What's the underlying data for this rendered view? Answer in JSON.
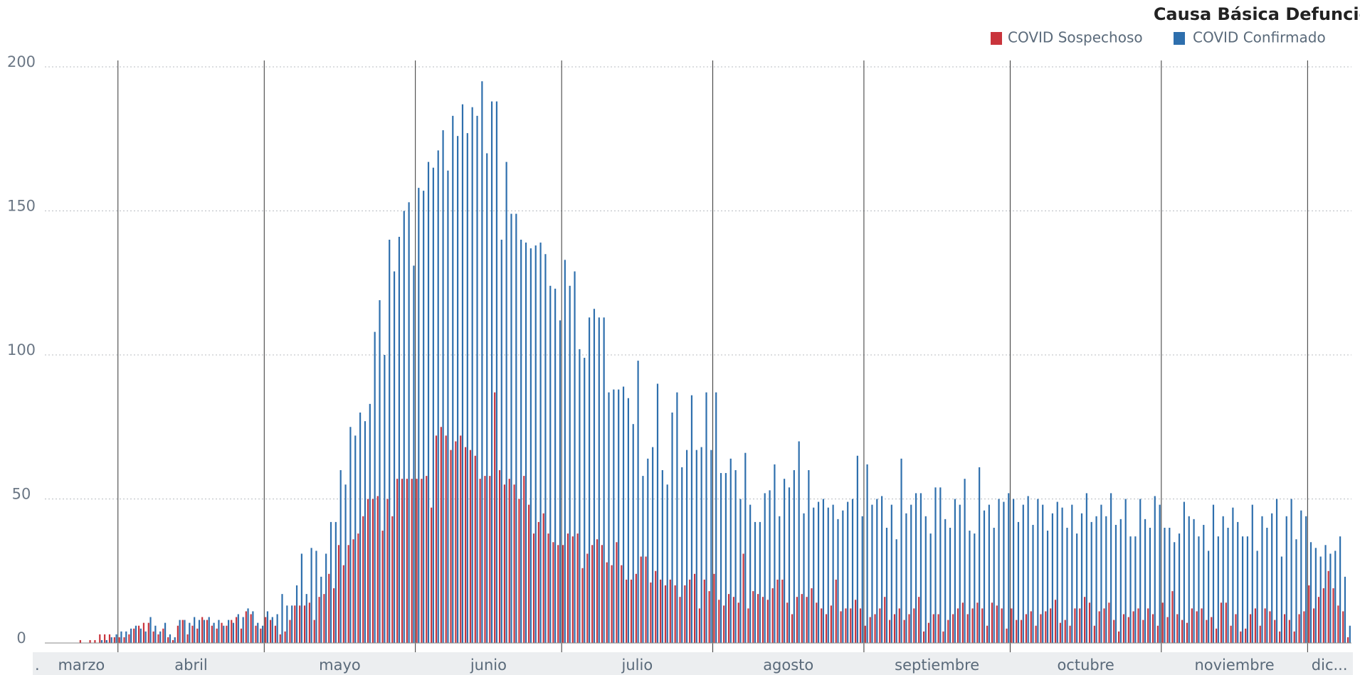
{
  "chart_data": {
    "type": "bar",
    "legend_title": "Causa Básica Defunción",
    "legend_position": "top-right",
    "series": [
      {
        "name": "COVID Sospechoso",
        "color": "#c9343c"
      },
      {
        "name": "COVID Confirmado",
        "color": "#2e6fad"
      }
    ],
    "ylim": [
      0,
      200
    ],
    "yticks": [
      0,
      50,
      100,
      150,
      200
    ],
    "grid": true,
    "months": [
      {
        "label": ".",
        "values": [
          [],
          []
        ]
      },
      {
        "label": "marzo",
        "values": [
          [
            0,
            0,
            0,
            0,
            0,
            0,
            0,
            1,
            0,
            1,
            1,
            3,
            3,
            3,
            2
          ],
          [
            0,
            0,
            0,
            0,
            0,
            0,
            0,
            0,
            0,
            0,
            0,
            1,
            1,
            2,
            3
          ]
        ]
      },
      {
        "label": "abril",
        "values": [
          [
            2,
            2,
            3,
            5,
            6,
            7,
            7,
            4,
            3,
            5,
            2,
            1,
            6,
            8,
            3,
            6,
            5,
            9,
            8,
            6,
            5,
            7,
            6,
            8,
            9,
            5,
            11,
            10,
            6,
            5
          ],
          [
            4,
            4,
            5,
            6,
            5,
            4,
            9,
            6,
            4,
            7,
            3,
            2,
            8,
            8,
            7,
            9,
            8,
            8,
            9,
            7,
            8,
            6,
            8,
            7,
            10,
            9,
            12,
            11,
            7,
            6
          ]
        ]
      },
      {
        "label": "mayo",
        "values": [
          [
            9,
            8,
            6,
            3,
            4,
            8,
            13,
            13,
            13,
            14,
            8,
            16,
            17,
            24,
            19,
            34,
            27,
            34,
            36,
            38,
            44,
            50,
            50,
            51,
            39,
            50,
            44,
            57,
            57,
            57,
            57
          ],
          [
            11,
            9,
            10,
            17,
            13,
            13,
            20,
            31,
            17,
            33,
            32,
            23,
            31,
            42,
            42,
            60,
            55,
            75,
            72,
            80,
            77,
            83,
            108,
            119,
            100,
            140,
            129,
            141,
            150,
            153,
            131
          ]
        ]
      },
      {
        "label": "junio",
        "values": [
          [
            57,
            57,
            58,
            47,
            72,
            75,
            72,
            67,
            70,
            72,
            68,
            67,
            65,
            57,
            58,
            58,
            87,
            60,
            55,
            57,
            55,
            50,
            58,
            48,
            38,
            42,
            45,
            38,
            35,
            34
          ],
          [
            158,
            157,
            167,
            165,
            171,
            178,
            164,
            183,
            176,
            187,
            177,
            186,
            183,
            195,
            170,
            188,
            188,
            140,
            167,
            149,
            149,
            140,
            139,
            137,
            138,
            139,
            135,
            124,
            123,
            112
          ]
        ]
      },
      {
        "label": "julio",
        "values": [
          [
            34,
            38,
            37,
            38,
            26,
            31,
            34,
            36,
            34,
            28,
            27,
            35,
            27,
            22,
            22,
            24,
            30,
            30,
            21,
            25,
            22,
            20,
            22,
            20,
            16,
            20,
            22,
            24,
            12,
            22,
            18
          ],
          [
            133,
            124,
            129,
            102,
            99,
            113,
            116,
            113,
            113,
            87,
            88,
            88,
            89,
            85,
            76,
            98,
            58,
            64,
            68,
            90,
            60,
            55,
            80,
            87,
            61,
            67,
            86,
            67,
            68,
            87,
            67
          ]
        ]
      },
      {
        "label": "agosto",
        "values": [
          [
            24,
            15,
            13,
            17,
            16,
            14,
            31,
            12,
            18,
            17,
            16,
            15,
            19,
            22,
            22,
            14,
            10,
            16,
            17,
            16,
            19,
            14,
            12,
            10,
            13,
            22,
            11,
            12,
            12,
            15,
            12
          ],
          [
            87,
            59,
            59,
            64,
            60,
            50,
            66,
            48,
            42,
            42,
            52,
            53,
            62,
            44,
            57,
            54,
            60,
            70,
            45,
            60,
            47,
            49,
            50,
            47,
            48,
            43,
            46,
            49,
            50,
            65,
            44
          ]
        ]
      },
      {
        "label": "septiembre",
        "values": [
          [
            6,
            9,
            10,
            12,
            16,
            8,
            10,
            12,
            8,
            10,
            12,
            16,
            4,
            7,
            10,
            10,
            4,
            8,
            10,
            12,
            14,
            10,
            12,
            14,
            12,
            6,
            14,
            13,
            12,
            5
          ],
          [
            62,
            48,
            50,
            51,
            40,
            48,
            36,
            64,
            45,
            48,
            52,
            52,
            44,
            38,
            54,
            54,
            43,
            40,
            50,
            48,
            57,
            39,
            38,
            61,
            46,
            48,
            40,
            50,
            49,
            52
          ]
        ]
      },
      {
        "label": "octubre",
        "values": [
          [
            12,
            8,
            8,
            10,
            11,
            6,
            10,
            11,
            12,
            15,
            7,
            8,
            6,
            12,
            12,
            16,
            14,
            6,
            11,
            12,
            14,
            8,
            4,
            10,
            9,
            11,
            12,
            8,
            12,
            10,
            6
          ],
          [
            50,
            42,
            48,
            51,
            41,
            50,
            48,
            39,
            45,
            49,
            47,
            40,
            48,
            38,
            45,
            52,
            42,
            44,
            48,
            44,
            52,
            41,
            43,
            50,
            37,
            37,
            50,
            43,
            40,
            51,
            48
          ]
        ]
      },
      {
        "label": "noviembre",
        "values": [
          [
            14,
            9,
            18,
            10,
            8,
            7,
            12,
            11,
            12,
            8,
            9,
            5,
            14,
            14,
            6,
            10,
            4,
            5,
            10,
            12,
            6,
            12,
            11,
            8,
            4,
            10,
            8,
            4,
            10,
            11
          ],
          [
            40,
            40,
            35,
            38,
            49,
            44,
            43,
            37,
            41,
            32,
            48,
            37,
            44,
            40,
            47,
            42,
            37,
            37,
            48,
            32,
            44,
            40,
            45,
            50,
            30,
            44,
            50,
            36,
            46,
            44
          ]
        ]
      },
      {
        "label": "dic...",
        "values": [
          [
            20,
            12,
            16,
            19,
            25,
            19,
            13,
            11,
            2
          ],
          [
            35,
            33,
            30,
            34,
            31,
            32,
            37,
            23,
            6
          ]
        ]
      }
    ]
  }
}
